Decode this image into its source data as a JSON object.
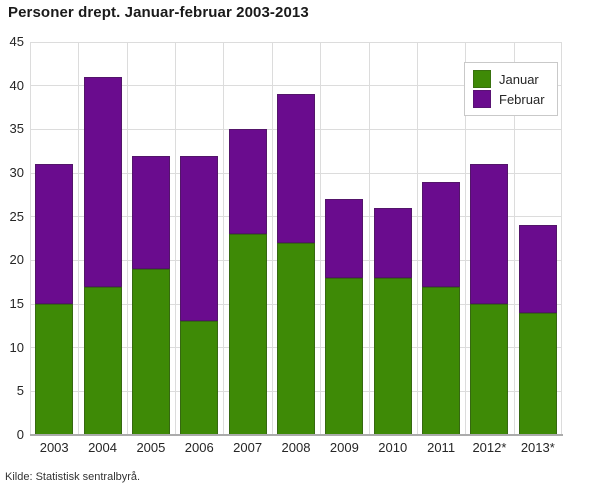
{
  "title": "Personer drept. Januar-februar 2003-2013",
  "source": "Kilde: Statistisk sentralbyrå.",
  "legend": {
    "position": "top-right",
    "items": [
      {
        "label": "Januar",
        "color": "#3e8a06"
      },
      {
        "label": "Februar",
        "color": "#6a0c8e"
      }
    ]
  },
  "chart_data": {
    "type": "bar",
    "stacked": true,
    "title": "Personer drept. Januar-februar 2003-2013",
    "xlabel": "",
    "ylabel": "",
    "categories": [
      "2003",
      "2004",
      "2005",
      "2006",
      "2007",
      "2008",
      "2009",
      "2010",
      "2011",
      "2012*",
      "2013*"
    ],
    "series": [
      {
        "name": "Januar",
        "color": "#3e8a06",
        "values": [
          15,
          17,
          19,
          13,
          23,
          22,
          18,
          18,
          17,
          15,
          14
        ]
      },
      {
        "name": "Februar",
        "color": "#6a0c8e",
        "values": [
          16,
          24,
          13,
          19,
          12,
          17,
          9,
          8,
          12,
          16,
          10
        ]
      }
    ],
    "totals": [
      31,
      41,
      32,
      32,
      35,
      39,
      27,
      26,
      29,
      31,
      24
    ],
    "ylim": [
      0,
      45
    ],
    "yticks": [
      0,
      5,
      10,
      15,
      20,
      25,
      30,
      35,
      40,
      45
    ],
    "grid": true,
    "grid_color": "#dcdcdc",
    "legend_position": "top-right"
  }
}
